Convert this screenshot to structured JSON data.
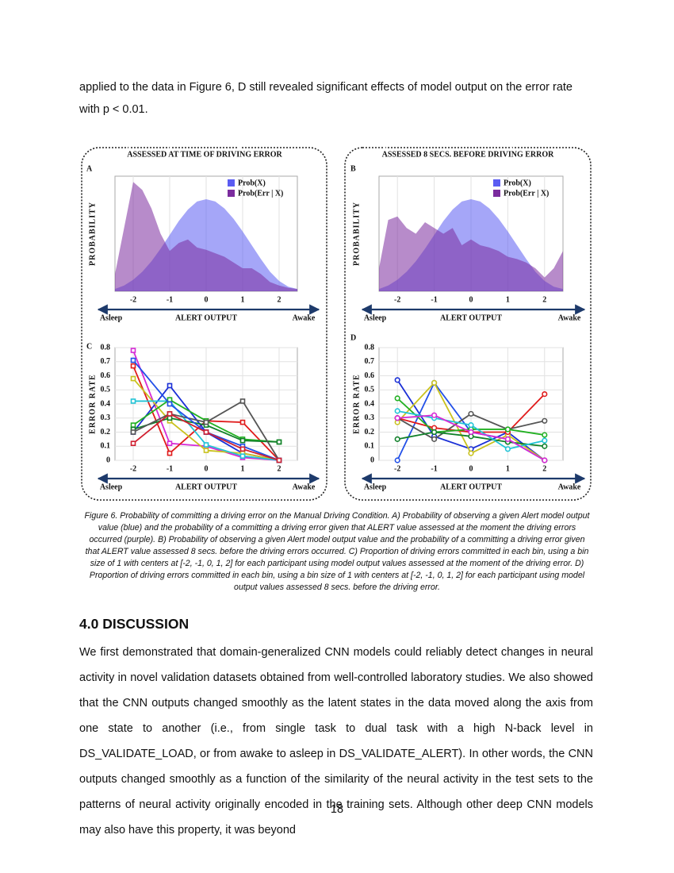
{
  "paper": {
    "intro_text": "applied to the data in Figure 6, D still revealed significant effects of model output on the error rate with p < 0.01.",
    "figure_caption": "Figure 6. Probability of committing a driving error on the Manual Driving Condition. A) Probability of observing a given Alert model output value (blue) and the probability of a committing a driving error given that ALERT value assessed at the moment the driving errors occurred (purple). B) Probability of observing a given Alert model output value and the probability of a committing a driving error given that ALERT value assessed 8 secs. before the driving errors occurred. C) Proportion of driving errors committed in each bin, using a bin size of 1 with centers at [-2, -1, 0, 1, 2] for each participant using model output values assessed at the moment of the driving error. D) Proportion of driving errors committed in each bin, using a bin size of 1 with centers at [-2, -1, 0, 1, 2] for each participant using model output values assessed 8 secs. before the driving error.",
    "section_heading": "4.0 DISCUSSION",
    "section_body": "We first demonstrated that domain-generalized CNN models could reliably detect changes in neural activity in novel validation datasets obtained from well-controlled laboratory studies. We also showed that the CNN outputs changed smoothly as the latent states in the data moved along the axis from one state to another (i.e., from single task to dual task with a high N-back level in DS_VALIDATE_LOAD, or from awake to asleep in DS_VALIDATE_ALERT). In other words, the CNN outputs changed smoothly as a function of the similarity of the neural activity in the test sets to the patterns of neural activity originally encoded in the training sets. Although other deep CNN models may also have this property, it was beyond",
    "page_number": "18"
  },
  "chart_data": [
    {
      "type": "area",
      "panel_label": "A",
      "title": "ASSESSED AT TIME OF DRIVING ERROR",
      "x_label": "ALERT OUTPUT",
      "y_label": "PROBABILITY",
      "x_left_label": "Asleep",
      "x_right_label": "Awake",
      "x": [
        -2.5,
        -2.25,
        -2,
        -1.75,
        -1.5,
        -1.25,
        -1,
        -0.75,
        -0.5,
        -0.25,
        0,
        0.25,
        0.5,
        0.75,
        1,
        1.25,
        1.5,
        1.75,
        2,
        2.25,
        2.5
      ],
      "series": [
        {
          "name": "Prob(X)",
          "color": "#5b5cf2",
          "values": [
            0.02,
            0.05,
            0.1,
            0.17,
            0.26,
            0.37,
            0.49,
            0.61,
            0.71,
            0.78,
            0.8,
            0.78,
            0.72,
            0.63,
            0.52,
            0.4,
            0.28,
            0.17,
            0.09,
            0.04,
            0.02
          ]
        },
        {
          "name": "Prob(Err | X)",
          "color": "#7b2c9e",
          "values": [
            0.15,
            0.55,
            0.95,
            0.88,
            0.72,
            0.5,
            0.35,
            0.42,
            0.45,
            0.38,
            0.36,
            0.33,
            0.3,
            0.25,
            0.2,
            0.2,
            0.15,
            0.08,
            0.05,
            0.03,
            0.02
          ]
        }
      ],
      "xlim": [
        -2.5,
        2.5
      ],
      "ylim": [
        0,
        1
      ],
      "xticks": [
        -2,
        -1,
        0,
        1,
        2
      ],
      "grid": true,
      "legend": "upper right"
    },
    {
      "type": "area",
      "panel_label": "B",
      "title": "ASSESSED 8 SECS. BEFORE DRIVING ERROR",
      "x_label": "ALERT OUTPUT",
      "y_label": "PROBABILITY",
      "x_left_label": "Asleep",
      "x_right_label": "Awake",
      "x": [
        -2.5,
        -2.25,
        -2,
        -1.75,
        -1.5,
        -1.25,
        -1,
        -0.75,
        -0.5,
        -0.25,
        0,
        0.25,
        0.5,
        0.75,
        1,
        1.25,
        1.5,
        1.75,
        2,
        2.25,
        2.5
      ],
      "series": [
        {
          "name": "Prob(X)",
          "color": "#5b5cf2",
          "values": [
            0.02,
            0.05,
            0.1,
            0.17,
            0.26,
            0.37,
            0.49,
            0.61,
            0.71,
            0.78,
            0.8,
            0.78,
            0.72,
            0.63,
            0.52,
            0.4,
            0.28,
            0.17,
            0.09,
            0.04,
            0.02
          ]
        },
        {
          "name": "Prob(Err | X)",
          "color": "#7b2c9e",
          "values": [
            0.2,
            0.62,
            0.65,
            0.55,
            0.5,
            0.6,
            0.55,
            0.5,
            0.55,
            0.4,
            0.45,
            0.4,
            0.38,
            0.35,
            0.3,
            0.28,
            0.25,
            0.2,
            0.12,
            0.2,
            0.35
          ]
        }
      ],
      "xlim": [
        -2.5,
        2.5
      ],
      "ylim": [
        0,
        1
      ],
      "xticks": [
        -2,
        -1,
        0,
        1,
        2
      ],
      "grid": true,
      "legend": "upper right"
    },
    {
      "type": "line",
      "panel_label": "C",
      "x_label": "ALERT OUTPUT",
      "y_label": "ERROR RATE",
      "x_left_label": "Asleep",
      "x_right_label": "Awake",
      "x": [
        -2,
        -1,
        0,
        1,
        2
      ],
      "marker": "square",
      "series": [
        {
          "color": "#d62ad6",
          "values": [
            0.78,
            0.12,
            0.1,
            0.02,
            0
          ]
        },
        {
          "color": "#e01b1b",
          "values": [
            0.67,
            0.05,
            0.28,
            0.27,
            0
          ]
        },
        {
          "color": "#1a2fd6",
          "values": [
            0.2,
            0.53,
            0.2,
            0.05,
            0
          ]
        },
        {
          "color": "#c9c21e",
          "values": [
            0.58,
            0.28,
            0.07,
            0.05,
            0
          ]
        },
        {
          "color": "#22c3d6",
          "values": [
            0.42,
            0.42,
            0.11,
            0.03,
            0
          ]
        },
        {
          "color": "#22b022",
          "values": [
            0.25,
            0.43,
            0.28,
            0.15,
            0.13
          ]
        },
        {
          "color": "#11802a",
          "values": [
            0.22,
            0.3,
            0.25,
            0.14,
            0.13
          ]
        },
        {
          "color": "#555555",
          "values": [
            0.2,
            0.33,
            0.27,
            0.42,
            0
          ]
        },
        {
          "color": "#2250e8",
          "values": [
            0.71,
            0.4,
            0.2,
            0.1,
            0
          ]
        },
        {
          "color": "#d02030",
          "values": [
            0.12,
            0.33,
            0.2,
            0.08,
            0
          ]
        }
      ],
      "xlim": [
        -2.5,
        2.5
      ],
      "ylim": [
        0,
        0.8
      ],
      "xticks": [
        -2,
        -1,
        0,
        1,
        2
      ],
      "yticks": [
        0,
        0.1,
        0.2,
        0.3,
        0.4,
        0.5,
        0.6,
        0.7,
        0.8
      ],
      "grid": true
    },
    {
      "type": "line",
      "panel_label": "D",
      "x_label": "ALERT OUTPUT",
      "y_label": "ERROR RATE",
      "x_left_label": "Asleep",
      "x_right_label": "Awake",
      "x": [
        -2,
        -1,
        0,
        1,
        2
      ],
      "marker": "circle",
      "series": [
        {
          "color": "#1a2fd6",
          "values": [
            0.57,
            0.17,
            0.08,
            0.2,
            0
          ]
        },
        {
          "color": "#2250e8",
          "values": [
            0,
            0.55,
            0.2,
            0.15,
            0
          ]
        },
        {
          "color": "#c9c21e",
          "values": [
            0.27,
            0.55,
            0.05,
            0.18,
            0
          ]
        },
        {
          "color": "#e01b1b",
          "values": [
            0.3,
            0.23,
            0.2,
            0.2,
            0.47
          ]
        },
        {
          "color": "#555555",
          "values": [
            0.3,
            0.15,
            0.33,
            0.22,
            0.28
          ]
        },
        {
          "color": "#22b022",
          "values": [
            0.44,
            0.2,
            0.22,
            0.22,
            0.18
          ]
        },
        {
          "color": "#11802a",
          "values": [
            0.15,
            0.2,
            0.17,
            0.13,
            0.1
          ]
        },
        {
          "color": "#22c3d6",
          "values": [
            0.35,
            0.3,
            0.25,
            0.08,
            0.14
          ]
        },
        {
          "color": "#d62ad6",
          "values": [
            0.3,
            0.32,
            0.2,
            0.15,
            0
          ]
        }
      ],
      "xlim": [
        -2.5,
        2.5
      ],
      "ylim": [
        0,
        0.8
      ],
      "xticks": [
        -2,
        -1,
        0,
        1,
        2
      ],
      "yticks": [
        0,
        0.1,
        0.2,
        0.3,
        0.4,
        0.5,
        0.6,
        0.7,
        0.8
      ],
      "grid": true
    }
  ]
}
